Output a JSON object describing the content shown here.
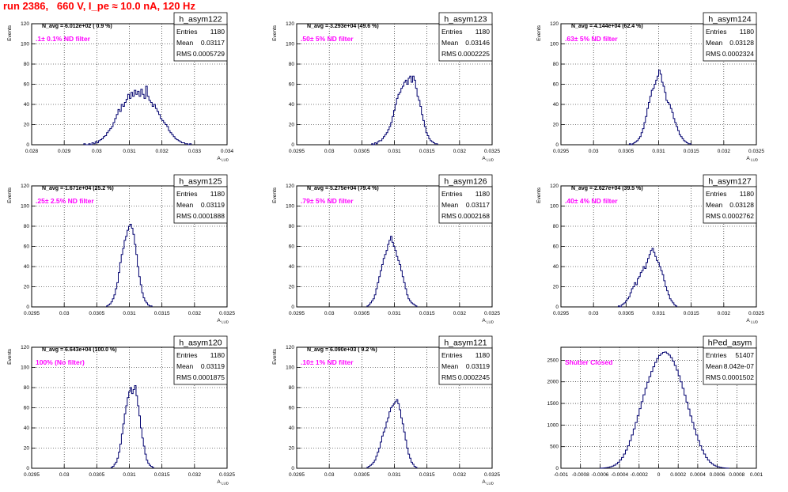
{
  "title": "run 2386,   660 V, I_pe ≈ 10.0 nA, 120 Hz",
  "colors": {
    "title": "#ff0000",
    "annotation": "#ff00ff",
    "histogram": "#00006e",
    "grid": "#000000",
    "background": "#ffffff"
  },
  "chart_data": [
    {
      "type": "histogram",
      "name": "h_asym122",
      "stats": {
        "entries_label": "Entries",
        "entries": "1180",
        "mean_label": "Mean",
        "mean": "0.03117",
        "rms_label": "RMS",
        "rms": "0.0005729"
      },
      "navg": "N_avg = 6.012e+02 ( 0.9 %)",
      "note": ".1± 0.1% ND filter",
      "ylabel": "Events",
      "xlabel": "A",
      "xlabel_sub": "LUD",
      "xlim": [
        0.028,
        0.034
      ],
      "ylim": [
        0,
        120
      ],
      "xticks": [
        0.028,
        0.029,
        0.03,
        0.031,
        0.032,
        0.033,
        0.034
      ],
      "xtick_labels": [
        "0.028",
        "0.029",
        "0.03",
        "0.031",
        "0.032",
        "0.033",
        "0.034"
      ],
      "yticks": [
        0,
        20,
        40,
        60,
        80,
        100,
        120
      ],
      "ytick_labels": [
        "0",
        "20",
        "40",
        "60",
        "80",
        "100",
        "120"
      ],
      "bin_width": 5e-05,
      "bins_start": 0.0296,
      "counts": [
        1,
        0,
        0,
        1,
        0,
        2,
        1,
        3,
        2,
        4,
        5,
        6,
        8,
        9,
        12,
        14,
        16,
        18,
        22,
        26,
        30,
        35,
        33,
        40,
        38,
        42,
        45,
        50,
        46,
        52,
        48,
        54,
        50,
        53,
        48,
        55,
        50,
        46,
        58,
        48,
        44,
        42,
        38,
        40,
        36,
        33,
        30,
        26,
        24,
        22,
        20,
        18,
        14,
        12,
        10,
        8,
        6,
        5,
        4,
        3,
        2,
        2,
        1,
        1,
        0,
        1
      ]
    },
    {
      "type": "histogram",
      "name": "h_asym123",
      "stats": {
        "entries_label": "Entries",
        "entries": "1180",
        "mean_label": "Mean",
        "mean": "0.03146",
        "rms_label": "RMS",
        "rms": "0.0002225"
      },
      "navg": "N_avg = 3.293e+04 (49.6 %)",
      "note": ".50± 5% ND filter",
      "ylabel": "Events",
      "xlabel": "A",
      "xlabel_sub": "LUD",
      "xlim": [
        0.0295,
        0.0325
      ],
      "ylim": [
        0,
        120
      ],
      "xticks": [
        0.0295,
        0.03,
        0.0305,
        0.031,
        0.0315,
        0.032,
        0.0325
      ],
      "xtick_labels": [
        "0.0295",
        "0.03",
        "0.0305",
        "0.031",
        "0.0315",
        "0.032",
        "0.0325"
      ],
      "yticks": [
        0,
        20,
        40,
        60,
        80,
        100,
        120
      ],
      "ytick_labels": [
        "0",
        "20",
        "40",
        "60",
        "80",
        "100",
        "120"
      ],
      "bin_width": 2.25e-05,
      "bins_start": 0.03065,
      "counts": [
        1,
        0,
        2,
        1,
        3,
        4,
        4,
        6,
        8,
        10,
        12,
        15,
        18,
        22,
        28,
        34,
        40,
        46,
        50,
        52,
        56,
        58,
        62,
        64,
        60,
        66,
        68,
        62,
        68,
        64,
        56,
        48,
        44,
        38,
        30,
        24,
        18,
        12,
        9,
        6,
        4,
        3,
        2,
        1,
        1
      ]
    },
    {
      "type": "histogram",
      "name": "h_asym124",
      "stats": {
        "entries_label": "Entries",
        "entries": "1180",
        "mean_label": "Mean",
        "mean": "0.03128",
        "rms_label": "RMS",
        "rms": "0.0002324"
      },
      "navg": "N_avg = 4.144e+04 (62.4 %)",
      "note": ".63± 5% ND filter",
      "ylabel": "Events",
      "xlabel": "A",
      "xlabel_sub": "LUD",
      "xlim": [
        0.0295,
        0.0325
      ],
      "ylim": [
        0,
        120
      ],
      "xticks": [
        0.0295,
        0.03,
        0.0305,
        0.031,
        0.0315,
        0.032,
        0.0325
      ],
      "xtick_labels": [
        "0.0295",
        "0.03",
        "0.0305",
        "0.031",
        "0.0315",
        "0.032",
        "0.0325"
      ],
      "yticks": [
        0,
        20,
        40,
        60,
        80,
        100,
        120
      ],
      "ytick_labels": [
        "0",
        "20",
        "40",
        "60",
        "80",
        "100",
        "120"
      ],
      "bin_width": 2.25e-05,
      "bins_start": 0.03055,
      "counts": [
        1,
        0,
        1,
        2,
        3,
        4,
        6,
        8,
        12,
        16,
        22,
        28,
        36,
        42,
        48,
        54,
        56,
        60,
        64,
        68,
        74,
        70,
        62,
        58,
        52,
        44,
        42,
        40,
        36,
        32,
        26,
        22,
        18,
        14,
        10,
        8,
        6,
        4,
        3,
        2,
        1,
        1
      ]
    },
    {
      "type": "histogram",
      "name": "h_asym125",
      "stats": {
        "entries_label": "Entries",
        "entries": "1180",
        "mean_label": "Mean",
        "mean": "0.03119",
        "rms_label": "RMS",
        "rms": "0.0001888"
      },
      "navg": "N_avg = 1.671e+04 (25.2 %)",
      "note": ".25± 2.5% ND filter",
      "ylabel": "Events",
      "xlabel": "A",
      "xlabel_sub": "LUD",
      "xlim": [
        0.0295,
        0.0325
      ],
      "ylim": [
        0,
        120
      ],
      "xticks": [
        0.0295,
        0.03,
        0.0305,
        0.031,
        0.0315,
        0.032,
        0.0325
      ],
      "xtick_labels": [
        "0.0295",
        "0.03",
        "0.0305",
        "0.031",
        "0.0315",
        "0.032",
        "0.0325"
      ],
      "yticks": [
        0,
        20,
        40,
        60,
        80,
        100,
        120
      ],
      "ytick_labels": [
        "0",
        "20",
        "40",
        "60",
        "80",
        "100",
        "120"
      ],
      "bin_width": 2.25e-05,
      "bins_start": 0.03065,
      "counts": [
        1,
        2,
        3,
        5,
        8,
        12,
        18,
        24,
        34,
        44,
        52,
        58,
        66,
        70,
        76,
        80,
        82,
        78,
        72,
        62,
        52,
        40,
        30,
        22,
        14,
        9,
        6,
        4,
        2,
        1,
        1
      ]
    },
    {
      "type": "histogram",
      "name": "h_asym126",
      "stats": {
        "entries_label": "Entries",
        "entries": "1180",
        "mean_label": "Mean",
        "mean": "0.03117",
        "rms_label": "RMS",
        "rms": "0.0002168"
      },
      "navg": "N_avg = 5.275e+04 (79.4 %)",
      "note": ".79± 5% ND filter",
      "ylabel": "Events",
      "xlabel": "A",
      "xlabel_sub": "LUD",
      "xlim": [
        0.0295,
        0.0325
      ],
      "ylim": [
        0,
        120
      ],
      "xticks": [
        0.0295,
        0.03,
        0.0305,
        0.031,
        0.0315,
        0.032,
        0.0325
      ],
      "xtick_labels": [
        "0.0295",
        "0.03",
        "0.0305",
        "0.031",
        "0.0315",
        "0.032",
        "0.0325"
      ],
      "yticks": [
        0,
        20,
        40,
        60,
        80,
        100,
        120
      ],
      "ytick_labels": [
        "0",
        "20",
        "40",
        "60",
        "80",
        "100",
        "120"
      ],
      "bin_width": 2.25e-05,
      "bins_start": 0.03058,
      "counts": [
        1,
        2,
        4,
        6,
        8,
        12,
        18,
        24,
        30,
        36,
        42,
        48,
        52,
        56,
        62,
        66,
        70,
        64,
        60,
        56,
        50,
        46,
        42,
        36,
        30,
        24,
        18,
        12,
        8,
        6,
        4,
        3,
        2,
        1
      ]
    },
    {
      "type": "histogram",
      "name": "h_asym127",
      "stats": {
        "entries_label": "Entries",
        "entries": "1180",
        "mean_label": "Mean",
        "mean": "0.03128",
        "rms_label": "RMS",
        "rms": "0.0002762"
      },
      "navg": "N_avg = 2.627e+04 (39.5 %)",
      "note": ".40± 4% ND filter",
      "ylabel": "Events",
      "xlabel": "A",
      "xlabel_sub": "LUD",
      "xlim": [
        0.0295,
        0.0325
      ],
      "ylim": [
        0,
        120
      ],
      "xticks": [
        0.0295,
        0.03,
        0.0305,
        0.031,
        0.0315,
        0.032,
        0.0325
      ],
      "xtick_labels": [
        "0.0295",
        "0.03",
        "0.0305",
        "0.031",
        "0.0315",
        "0.032",
        "0.0325"
      ],
      "yticks": [
        0,
        20,
        40,
        60,
        80,
        100,
        120
      ],
      "ytick_labels": [
        "0",
        "20",
        "40",
        "60",
        "80",
        "100",
        "120"
      ],
      "bin_width": 2.25e-05,
      "bins_start": 0.03038,
      "counts": [
        1,
        0,
        2,
        3,
        4,
        6,
        8,
        10,
        14,
        18,
        20,
        24,
        22,
        28,
        30,
        34,
        36,
        40,
        38,
        44,
        48,
        52,
        56,
        58,
        54,
        50,
        46,
        44,
        40,
        36,
        32,
        26,
        20,
        16,
        12,
        8,
        6,
        4,
        2,
        1
      ]
    },
    {
      "type": "histogram",
      "name": "h_asym120",
      "stats": {
        "entries_label": "Entries",
        "entries": "1180",
        "mean_label": "Mean",
        "mean": "0.03119",
        "rms_label": "RMS",
        "rms": "0.0001875"
      },
      "navg": "N_avg = 6.643e+04 (100.0 %)",
      "note": "100% (No filter)",
      "ylabel": "Events",
      "xlabel": "A",
      "xlabel_sub": "LUD",
      "xlim": [
        0.0295,
        0.0325
      ],
      "ylim": [
        0,
        120
      ],
      "xticks": [
        0.0295,
        0.03,
        0.0305,
        0.031,
        0.0315,
        0.032,
        0.0325
      ],
      "xtick_labels": [
        "0.0295",
        "0.03",
        "0.0305",
        "0.031",
        "0.0315",
        "0.032",
        "0.0325"
      ],
      "yticks": [
        0,
        20,
        40,
        60,
        80,
        100,
        120
      ],
      "ytick_labels": [
        "0",
        "20",
        "40",
        "60",
        "80",
        "100",
        "120"
      ],
      "bin_width": 2.25e-05,
      "bins_start": 0.03072,
      "counts": [
        1,
        2,
        4,
        6,
        10,
        16,
        24,
        34,
        44,
        54,
        62,
        70,
        76,
        80,
        74,
        78,
        82,
        72,
        62,
        52,
        40,
        30,
        22,
        14,
        8,
        5,
        3,
        2,
        1
      ]
    },
    {
      "type": "histogram",
      "name": "h_asym121",
      "stats": {
        "entries_label": "Entries",
        "entries": "1180",
        "mean_label": "Mean",
        "mean": "0.03119",
        "rms_label": "RMS",
        "rms": "0.0002245"
      },
      "navg": "N_avg = 6.090e+03 ( 9.2 %)",
      "note": ".10± 1% ND filter",
      "ylabel": "Events",
      "xlabel": "A",
      "xlabel_sub": "LUD",
      "xlim": [
        0.0295,
        0.0325
      ],
      "ylim": [
        0,
        120
      ],
      "xticks": [
        0.0295,
        0.03,
        0.0305,
        0.031,
        0.0315,
        0.032,
        0.0325
      ],
      "xtick_labels": [
        "0.0295",
        "0.03",
        "0.0305",
        "0.031",
        "0.0315",
        "0.032",
        "0.0325"
      ],
      "yticks": [
        0,
        20,
        40,
        60,
        80,
        100,
        120
      ],
      "ytick_labels": [
        "0",
        "20",
        "40",
        "60",
        "80",
        "100",
        "120"
      ],
      "bin_width": 2.25e-05,
      "bins_start": 0.03058,
      "counts": [
        1,
        2,
        3,
        4,
        6,
        8,
        12,
        16,
        20,
        26,
        32,
        36,
        40,
        46,
        50,
        56,
        60,
        62,
        64,
        66,
        68,
        64,
        58,
        50,
        44,
        36,
        28,
        20,
        14,
        10,
        6,
        4,
        2,
        1
      ]
    },
    {
      "type": "histogram",
      "name": "hPed_asym",
      "stats": {
        "entries_label": "Entries",
        "entries": "51407",
        "mean_label": "Mean",
        "mean": "8.042e-07",
        "rms_label": "RMS",
        "rms": "0.0001502"
      },
      "navg": "",
      "note": "Shutter Closed",
      "ylabel": "",
      "xlabel": "",
      "xlabel_sub": "",
      "xlim": [
        -0.001,
        0.001
      ],
      "ylim": [
        0,
        2800
      ],
      "xticks": [
        -0.001,
        -0.0008,
        -0.0006,
        -0.0004,
        -0.0002,
        0,
        0.0002,
        0.0004,
        0.0006,
        0.0008,
        0.001
      ],
      "xtick_labels": [
        "-0.001",
        "-0.0008",
        "-0.0006",
        "-0.0004",
        "-0.0002",
        "0",
        "0.0002",
        "0.0004",
        "0.0006",
        "0.0008",
        "0.001"
      ],
      "yticks": [
        0,
        500,
        1000,
        1500,
        2000,
        2500
      ],
      "ytick_labels": [
        "0",
        "500",
        "1000",
        "1500",
        "2000",
        "2500"
      ],
      "bin_width": 2e-05,
      "bins_start": -0.0006,
      "counts": [
        2,
        4,
        8,
        14,
        22,
        34,
        50,
        72,
        100,
        140,
        190,
        250,
        330,
        420,
        520,
        640,
        770,
        910,
        1060,
        1220,
        1380,
        1540,
        1700,
        1850,
        1990,
        2120,
        2240,
        2350,
        2450,
        2540,
        2610,
        2650,
        2680,
        2690,
        2660,
        2620,
        2560,
        2480,
        2380,
        2270,
        2140,
        2000,
        1850,
        1690,
        1530,
        1370,
        1210,
        1060,
        910,
        770,
        640,
        520,
        420,
        330,
        250,
        190,
        140,
        100,
        72,
        50,
        34,
        22,
        14,
        8,
        4,
        2
      ]
    }
  ]
}
